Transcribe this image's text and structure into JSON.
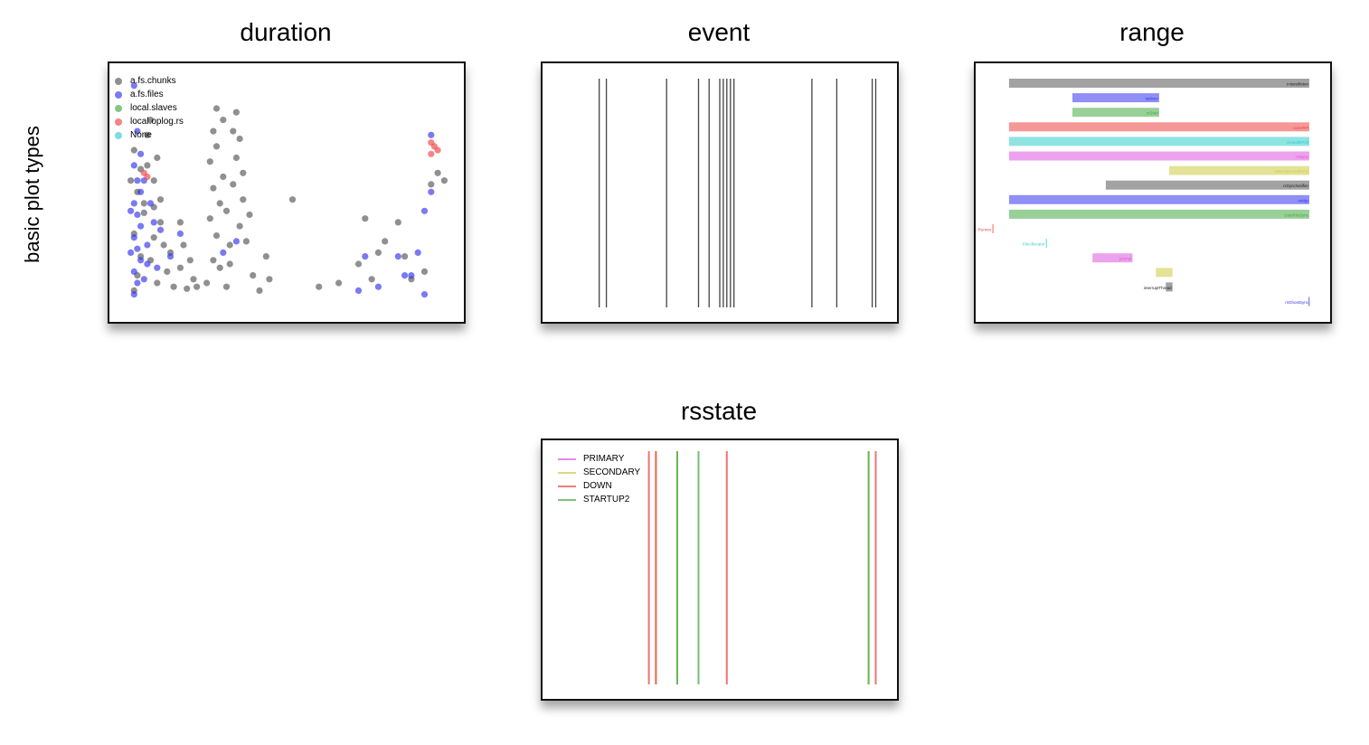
{
  "figure": {
    "side_label": "basic plot types"
  },
  "colors": {
    "gray": "#555555",
    "blue": "#3333ee",
    "green": "#44aa44",
    "red": "#ee4444",
    "cyan": "#33cccc",
    "magenta": "#dd55dd",
    "yellow": "#cccc44"
  },
  "chart_data": [
    {
      "type": "scatter",
      "title": "duration",
      "legend_position": "top-left",
      "series": [
        {
          "name": "a.fs.chunks",
          "color": "#555555",
          "points": [
            [
              0.22,
              0.04
            ],
            [
              0.23,
              0.12
            ],
            [
              0.24,
              0.22
            ],
            [
              0.22,
              0.34
            ],
            [
              0.25,
              0.45
            ],
            [
              0.23,
              0.56
            ],
            [
              0.24,
              0.68
            ],
            [
              0.22,
              0.78
            ],
            [
              0.26,
              0.86
            ],
            [
              0.21,
              0.62
            ],
            [
              0.27,
              0.2
            ],
            [
              0.28,
              0.32
            ],
            [
              0.29,
              0.08
            ],
            [
              0.3,
              0.4
            ],
            [
              0.31,
              0.28
            ],
            [
              0.32,
              0.14
            ],
            [
              0.3,
              0.52
            ],
            [
              0.28,
              0.62
            ],
            [
              0.33,
              0.24
            ],
            [
              0.34,
              0.06
            ],
            [
              0.36,
              0.16
            ],
            [
              0.38,
              0.05
            ],
            [
              0.4,
              0.1
            ],
            [
              0.37,
              0.28
            ],
            [
              0.36,
              0.4
            ],
            [
              0.39,
              0.2
            ],
            [
              0.41,
              0.06
            ],
            [
              0.44,
              0.08
            ],
            [
              0.46,
              0.2
            ],
            [
              0.47,
              0.33
            ],
            [
              0.46,
              0.58
            ],
            [
              0.45,
              0.72
            ],
            [
              0.46,
              0.88
            ],
            [
              0.47,
              1.0
            ],
            [
              0.45,
              0.42
            ],
            [
              0.48,
              0.5
            ],
            [
              0.49,
              0.64
            ],
            [
              0.47,
              0.8
            ],
            [
              0.49,
              0.94
            ],
            [
              0.48,
              0.16
            ],
            [
              0.5,
              0.06
            ],
            [
              0.51,
              0.28
            ],
            [
              0.5,
              0.46
            ],
            [
              0.52,
              0.6
            ],
            [
              0.53,
              0.74
            ],
            [
              0.52,
              0.88
            ],
            [
              0.53,
              0.98
            ],
            [
              0.51,
              0.18
            ],
            [
              0.54,
              0.38
            ],
            [
              0.54,
              0.84
            ],
            [
              0.55,
              0.66
            ],
            [
              0.55,
              0.52
            ],
            [
              0.56,
              0.3
            ],
            [
              0.57,
              0.44
            ],
            [
              0.58,
              0.12
            ],
            [
              0.6,
              0.04
            ],
            [
              0.62,
              0.22
            ],
            [
              0.63,
              0.1
            ],
            [
              0.7,
              0.52
            ],
            [
              0.78,
              0.06
            ],
            [
              0.84,
              0.08
            ],
            [
              0.9,
              0.18
            ],
            [
              0.92,
              0.42
            ],
            [
              0.94,
              0.1
            ],
            [
              0.96,
              0.24
            ],
            [
              0.98,
              0.3
            ],
            [
              1.02,
              0.4
            ],
            [
              1.04,
              0.22
            ],
            [
              1.06,
              0.1
            ],
            [
              1.1,
              0.14
            ],
            [
              1.12,
              0.6
            ],
            [
              1.14,
              0.66
            ],
            [
              1.16,
              0.62
            ],
            [
              0.25,
              0.5
            ],
            [
              0.26,
              0.7
            ],
            [
              0.27,
              0.94
            ],
            [
              0.28,
              0.48
            ],
            [
              0.29,
              0.74
            ]
          ]
        },
        {
          "name": "a.fs.files",
          "color": "#3333ee",
          "points": [
            [
              0.22,
              0.02
            ],
            [
              0.23,
              0.08
            ],
            [
              0.22,
              0.14
            ],
            [
              0.24,
              0.2
            ],
            [
              0.23,
              0.26
            ],
            [
              0.22,
              0.32
            ],
            [
              0.24,
              0.38
            ],
            [
              0.23,
              0.44
            ],
            [
              0.22,
              0.5
            ],
            [
              0.24,
              0.56
            ],
            [
              0.23,
              0.62
            ],
            [
              0.22,
              0.7
            ],
            [
              0.24,
              0.76
            ],
            [
              0.23,
              0.88
            ],
            [
              0.22,
              1.12
            ],
            [
              0.21,
              0.46
            ],
            [
              0.21,
              0.24
            ],
            [
              0.25,
              0.1
            ],
            [
              0.26,
              0.28
            ],
            [
              0.28,
              0.4
            ],
            [
              0.3,
              0.36
            ],
            [
              0.29,
              0.16
            ],
            [
              0.33,
              0.22
            ],
            [
              0.36,
              0.34
            ],
            [
              0.49,
              0.24
            ],
            [
              0.53,
              0.3
            ],
            [
              0.9,
              0.04
            ],
            [
              0.92,
              0.22
            ],
            [
              0.96,
              0.06
            ],
            [
              1.02,
              0.22
            ],
            [
              1.04,
              0.12
            ],
            [
              1.06,
              0.12
            ],
            [
              1.08,
              0.24
            ],
            [
              1.1,
              0.46
            ],
            [
              1.12,
              0.56
            ],
            [
              1.1,
              0.02
            ],
            [
              1.12,
              0.86
            ],
            [
              0.25,
              0.62
            ],
            [
              0.26,
              0.18
            ],
            [
              0.27,
              0.5
            ]
          ]
        },
        {
          "name": "local.slaves",
          "color": "#44aa44",
          "points": []
        },
        {
          "name": "local.oplog.rs",
          "color": "#ee4444",
          "points": [
            [
              0.25,
              0.66
            ],
            [
              0.26,
              0.64
            ],
            [
              1.12,
              0.82
            ],
            [
              1.13,
              0.8
            ],
            [
              1.14,
              0.78
            ],
            [
              1.12,
              0.76
            ]
          ]
        },
        {
          "name": "None",
          "color": "#33cccc",
          "points": []
        }
      ],
      "xlim": [
        0.2,
        1.2
      ],
      "ylim": [
        -0.02,
        1.2
      ]
    },
    {
      "type": "event",
      "title": "event",
      "events": [
        0.16,
        0.18,
        0.35,
        0.44,
        0.47,
        0.5,
        0.51,
        0.52,
        0.53,
        0.54,
        0.76,
        0.83,
        0.93,
        0.94
      ],
      "xlim": [
        0,
        1
      ]
    },
    {
      "type": "range",
      "title": "range",
      "xlim": [
        0,
        1
      ],
      "bars": [
        {
          "start": 0.1,
          "end": 1.0,
          "color": "#555555",
          "label": "initandlisten"
        },
        {
          "start": 0.29,
          "end": 0.55,
          "color": "#3333ee",
          "label": "websvr"
        },
        {
          "start": 0.29,
          "end": 0.55,
          "color": "#44aa44",
          "label": "rsStart"
        },
        {
          "start": 0.1,
          "end": 1.0,
          "color": "#ee4444",
          "label": "conn###"
        },
        {
          "start": 0.1,
          "end": 1.0,
          "color": "#33cccc",
          "label": "rsHealthPoll"
        },
        {
          "start": 0.1,
          "end": 1.0,
          "color": "#dd55dd",
          "label": "rsSync"
        },
        {
          "start": 0.58,
          "end": 1.0,
          "color": "#cccc44",
          "label": "rsBackgroundSync"
        },
        {
          "start": 0.39,
          "end": 1.0,
          "color": "#555555",
          "label": "rsSyncNotifier"
        },
        {
          "start": 0.1,
          "end": 1.0,
          "color": "#3333ee",
          "label": "rsMgr"
        },
        {
          "start": 0.1,
          "end": 1.0,
          "color": "#44aa44",
          "label": "DataFileSync"
        },
        {
          "start": 0.05,
          "end": 0.05,
          "color": "#ee4444",
          "label": "PeriodicTask::Runner"
        },
        {
          "start": 0.21,
          "end": 0.21,
          "color": "#33cccc",
          "label": "FileAllocator"
        },
        {
          "start": 0.35,
          "end": 0.47,
          "color": "#dd55dd",
          "label": "journal"
        },
        {
          "start": 0.54,
          "end": 0.59,
          "color": "#cccc44",
          "label": ""
        },
        {
          "start": 0.57,
          "end": 0.59,
          "color": "#555555",
          "label": "interruptThread"
        },
        {
          "start": 0.997,
          "end": 1.0,
          "color": "#3333ee",
          "label": "rsGhostSync"
        }
      ]
    },
    {
      "type": "rsstate",
      "title": "rsstate",
      "legend_position": "top-left",
      "series": [
        {
          "name": "PRIMARY",
          "color": "#dd55dd",
          "x": []
        },
        {
          "name": "SECONDARY",
          "color": "#cccc44",
          "x": [
            0.32,
            0.38,
            0.92
          ]
        },
        {
          "name": "DOWN",
          "color": "#ee4444",
          "x": [
            0.3,
            0.32,
            0.52,
            0.94
          ]
        },
        {
          "name": "STARTUP2",
          "color": "#44aa44",
          "x": [
            0.38,
            0.44,
            0.92
          ]
        }
      ],
      "xlim": [
        0,
        1
      ]
    }
  ]
}
